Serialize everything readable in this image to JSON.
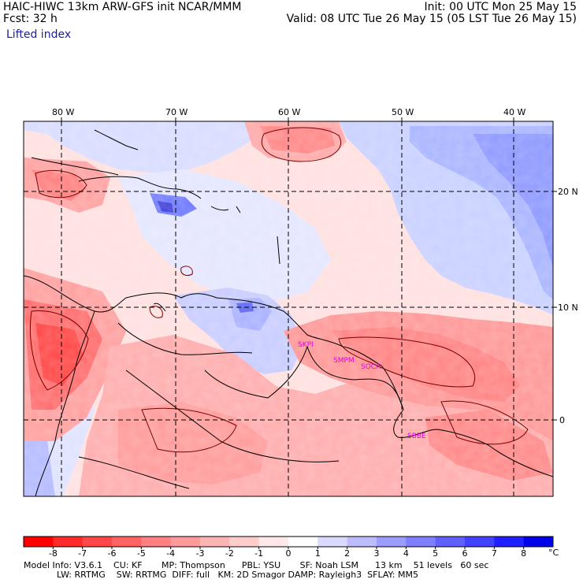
{
  "header": {
    "left_line1": "HAIC-HIWC 13km ARW-GFS init   NCAR/MMM",
    "left_line2": "Fcst:   32 h",
    "right_line1": "Init: 00 UTC Mon 25 May 15",
    "right_line2": "Valid: 08 UTC Tue 26 May 15 (05 LST Tue 26 May 15)",
    "field": "Lifted index"
  },
  "axes": {
    "lon_labels": [
      "80 W",
      "70 W",
      "60 W",
      "50 W",
      "40 W"
    ],
    "lat_labels": [
      "20 N",
      "10 N",
      "0"
    ]
  },
  "stations": [
    "SKPI",
    "SMPM",
    "SOCA",
    "SBBE"
  ],
  "colorbar": {
    "ticks": [
      "-8",
      "-7",
      "-6",
      "-5",
      "-4",
      "-3",
      "-2",
      "-1",
      "0",
      "1",
      "2",
      "3",
      "4",
      "5",
      "6",
      "7",
      "8"
    ],
    "unit": "°C",
    "colors": [
      "#ff0000",
      "#ff2a2a",
      "#ff4848",
      "#ff6464",
      "#ff8080",
      "#ff9a9a",
      "#ffb4b4",
      "#ffcccc",
      "#ffe8e8",
      "#ffffff",
      "#dadaff",
      "#bcbcff",
      "#9c9cff",
      "#7e7eff",
      "#6060ff",
      "#4242ff",
      "#2020ff",
      "#0000e6"
    ]
  },
  "footer": {
    "line1": "Model Info: V3.6.1    CU: KF       MP: Thompson      PBL: YSU       SF: Noah LSM      13 km    51 levels   60 sec",
    "line2": "            LW: RRTMG    SW: RRTMG  DIFF: full   KM: 2D Smagor DAMP: Rayleigh3  SFLAY: MM5"
  }
}
